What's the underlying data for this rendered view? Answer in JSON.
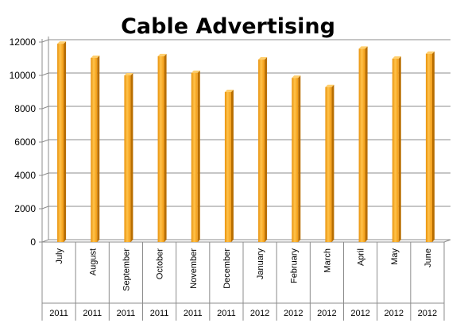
{
  "chart_data": {
    "type": "bar",
    "title": "Cable Advertising",
    "xlabel": "",
    "ylabel": "",
    "ylim": [
      0,
      12000
    ],
    "yticks": [
      "0",
      "2000",
      "4000",
      "6000",
      "8000",
      "10000",
      "12000"
    ],
    "grid": true,
    "legend": "none",
    "bar_color": "#F5A623",
    "categories": [
      "July",
      "August",
      "September",
      "October",
      "November",
      "December",
      "January",
      "February",
      "March",
      "April",
      "May",
      "June"
    ],
    "years": [
      "2011",
      "2011",
      "2011",
      "2011",
      "2011",
      "2011",
      "2012",
      "2012",
      "2012",
      "2012",
      "2012",
      "2012"
    ],
    "values": [
      11900,
      11050,
      10000,
      11150,
      10150,
      9000,
      10950,
      9850,
      9300,
      11600,
      11000,
      11300
    ]
  }
}
